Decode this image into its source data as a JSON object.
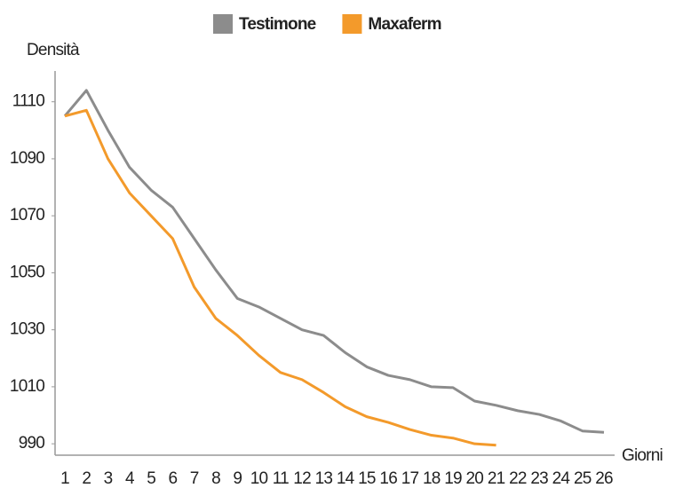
{
  "chart_data": {
    "type": "line",
    "ylabel": "Densità",
    "xlabel": "Giorni",
    "categories": [
      "1",
      "2",
      "3",
      "4",
      "5",
      "6",
      "7",
      "8",
      "9",
      "10",
      "11",
      "12",
      "13",
      "14",
      "15",
      "16",
      "17",
      "18",
      "19",
      "20",
      "21",
      "22",
      "23",
      "24",
      "25",
      "26"
    ],
    "series": [
      {
        "name": "Testimone",
        "color": "#8c8c8c",
        "values": [
          1105,
          1114,
          1100,
          1087,
          1079,
          1073,
          1062,
          1051,
          1041,
          1038,
          1034,
          1030,
          1028,
          1022,
          1017,
          1014,
          1012.5,
          1010,
          1009.7,
          1005,
          1003.5,
          1001.6,
          1000.3,
          998,
          994.5,
          994
        ]
      },
      {
        "name": "Maxaferm",
        "color": "#f39a2b",
        "values": [
          1105,
          1107,
          1090,
          1078,
          1070,
          1062,
          1045,
          1034,
          1028,
          1021,
          1015,
          1012.5,
          1008,
          1003,
          999.5,
          997.5,
          995,
          993,
          992,
          990,
          989.5,
          null,
          null,
          null,
          null,
          null
        ]
      }
    ],
    "ylim": [
      986,
      1118
    ],
    "yticks": [
      990,
      1010,
      1030,
      1050,
      1070,
      1090,
      1110
    ],
    "grid": false,
    "legend": "top"
  }
}
